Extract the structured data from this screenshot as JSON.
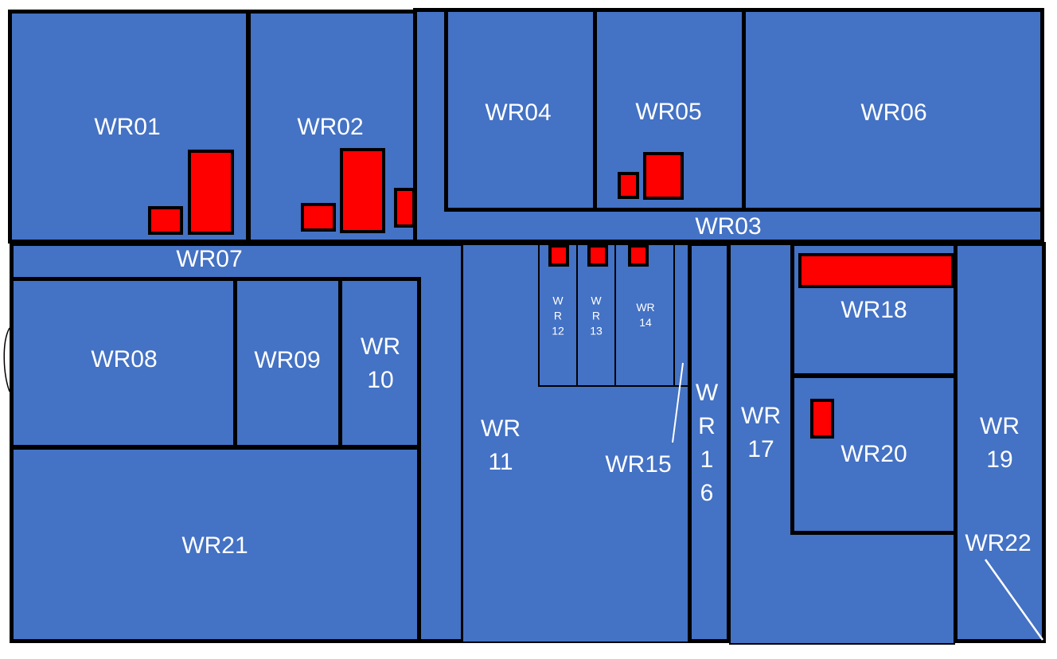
{
  "colors": {
    "room_fill": "#4472c4",
    "wall": "#000000",
    "marker": "#ff0000",
    "label": "#ffffff"
  },
  "rooms": [
    {
      "id": "WR01",
      "label": "WR01"
    },
    {
      "id": "WR02",
      "label": "WR02"
    },
    {
      "id": "WR03",
      "label": "WR03"
    },
    {
      "id": "WR04",
      "label": "WR04"
    },
    {
      "id": "WR05",
      "label": "WR05"
    },
    {
      "id": "WR06",
      "label": "WR06"
    },
    {
      "id": "WR07",
      "label": "WR07"
    },
    {
      "id": "WR08",
      "label": "WR08"
    },
    {
      "id": "WR09",
      "label": "WR09"
    },
    {
      "id": "WR10",
      "label": "WR\n10"
    },
    {
      "id": "WR11",
      "label": "WR\n11"
    },
    {
      "id": "WR12",
      "label": "W\nR\n12"
    },
    {
      "id": "WR13",
      "label": "W\nR\n13"
    },
    {
      "id": "WR14",
      "label": "WR\n14"
    },
    {
      "id": "WR15",
      "label": "WR15"
    },
    {
      "id": "WR16",
      "label": "W\nR\n1\n6"
    },
    {
      "id": "WR17",
      "label": "WR\n17"
    },
    {
      "id": "WR18",
      "label": "WR18"
    },
    {
      "id": "WR19",
      "label": "WR\n19"
    },
    {
      "id": "WR20",
      "label": "WR20"
    },
    {
      "id": "WR21",
      "label": "WR21"
    },
    {
      "id": "WR22",
      "label": "WR22"
    }
  ]
}
